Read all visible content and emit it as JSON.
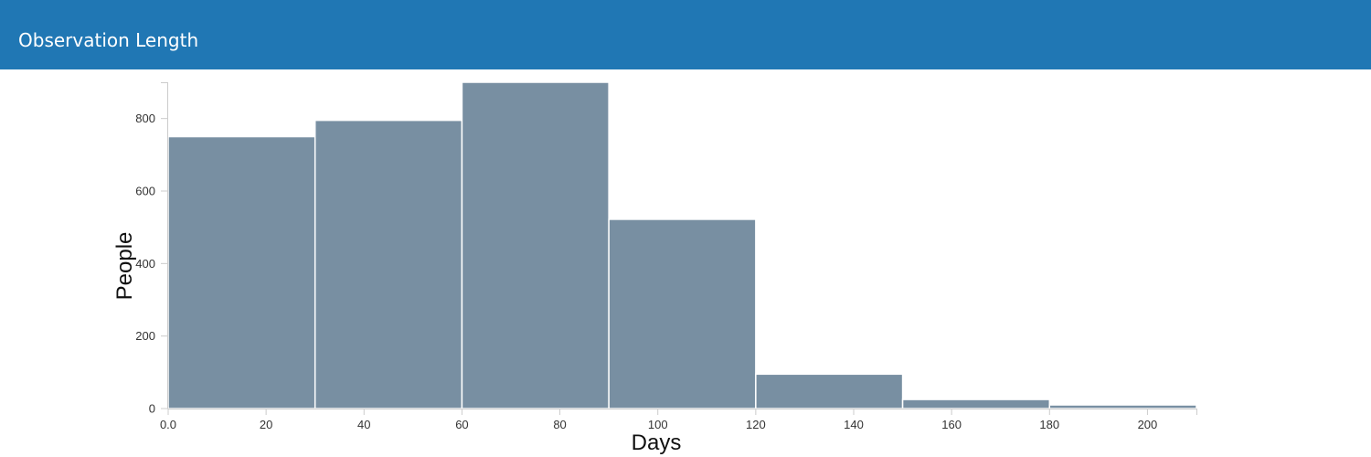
{
  "header": {
    "title": "Observation Length"
  },
  "colors": {
    "header_background": "#2077b4",
    "bar_fill": "#788fa2",
    "bar_stroke": "#ffffff",
    "axis": "#cccccc"
  },
  "chart_data": {
    "type": "bar",
    "title": "",
    "xlabel": "Days",
    "ylabel": "People",
    "bins": [
      {
        "x0": 0,
        "x1": 30,
        "value": 750
      },
      {
        "x0": 30,
        "x1": 60,
        "value": 795
      },
      {
        "x0": 60,
        "x1": 90,
        "value": 900
      },
      {
        "x0": 90,
        "x1": 120,
        "value": 522
      },
      {
        "x0": 120,
        "x1": 150,
        "value": 95
      },
      {
        "x0": 150,
        "x1": 180,
        "value": 25
      },
      {
        "x0": 180,
        "x1": 210,
        "value": 10
      }
    ],
    "xlim": [
      0,
      210
    ],
    "ylim": [
      0,
      900
    ],
    "x_ticks": [
      "0.0",
      "20",
      "40",
      "60",
      "80",
      "100",
      "120",
      "140",
      "160",
      "180",
      "200"
    ],
    "y_ticks": [
      "0",
      "200",
      "400",
      "600",
      "800"
    ],
    "grid": false
  }
}
